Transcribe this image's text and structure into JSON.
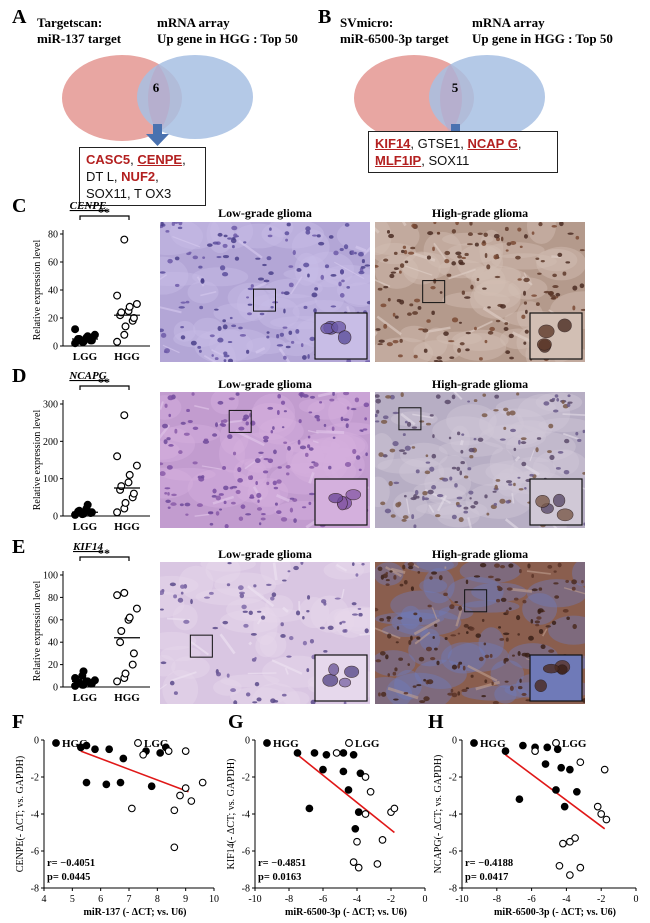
{
  "panels": {
    "A": {
      "letter": "A",
      "left_title": "Targetscan:",
      "left_sub": "miR-137 target",
      "right_title": "mRNA array",
      "right_sub": "Up gene in HGG : Top 50",
      "overlap": "6",
      "genes": [
        {
          "text": "CASC5",
          "style": "red"
        },
        {
          "text": ", ",
          "style": "blk"
        },
        {
          "text": "CENPE",
          "style": "red u"
        },
        {
          "text": ", DT L, ",
          "style": "blk"
        },
        {
          "text": "NUF2",
          "style": "red"
        },
        {
          "text": ", SOX11, T OX3",
          "style": "blk"
        }
      ]
    },
    "B": {
      "letter": "B",
      "left_title": "SVmicro:",
      "left_sub": "miR-6500-3p  target",
      "right_title": "mRNA array",
      "right_sub": "Up gene in HGG : Top 50",
      "overlap": "5",
      "genes": [
        {
          "text": "KIF14",
          "style": "red u"
        },
        {
          "text": ", GTSE1, ",
          "style": "blk"
        },
        {
          "text": "NCAP G",
          "style": "red"
        },
        {
          "text": ", ",
          "style": "blk"
        },
        {
          "text": "MLF1IP",
          "style": "red u"
        },
        {
          "text": ", SOX11",
          "style": "blk"
        }
      ]
    },
    "C": {
      "letter": "C",
      "histo_left": "Low-grade glioma",
      "histo_right": "High-grade glioma"
    },
    "D": {
      "letter": "D",
      "histo_left": "Low-grade glioma",
      "histo_right": "High-grade glioma"
    },
    "E": {
      "letter": "E",
      "histo_left": "Low-grade glioma",
      "histo_right": "High-grade glioma"
    },
    "F": {
      "letter": "F"
    },
    "G": {
      "letter": "G"
    },
    "H": {
      "letter": "H"
    }
  },
  "colors": {
    "venn_left": "#e8a6a2",
    "venn_right": "#a7bfe3",
    "arrow": "#4a72b0",
    "fit_line": "#e01818",
    "stain_blue": "#9a86c8",
    "stain_brown": "#7a4a34"
  },
  "chart_data": [
    {
      "id": "C",
      "type": "scatter",
      "gene": "CENPE",
      "significance": "**",
      "ylabel": "Relative expression level",
      "ylim": [
        0,
        80
      ],
      "yticks": [
        0,
        20,
        40,
        60,
        80
      ],
      "categories": [
        "LGG",
        "HGG"
      ],
      "series": [
        {
          "name": "LGG",
          "filled": true,
          "values": [
            2,
            3,
            3,
            4,
            4,
            5,
            5,
            6,
            7,
            8,
            12
          ],
          "mean": 5
        },
        {
          "name": "HGG",
          "filled": false,
          "values": [
            3,
            8,
            14,
            18,
            20,
            22,
            24,
            25,
            28,
            30,
            36,
            76
          ],
          "mean": 22
        }
      ]
    },
    {
      "id": "D",
      "type": "scatter",
      "gene": "NCAPG",
      "significance": "**",
      "ylabel": "Relative expression level",
      "ylim": [
        0,
        300
      ],
      "yticks": [
        0,
        100,
        200,
        300
      ],
      "categories": [
        "LGG",
        "HGG"
      ],
      "series": [
        {
          "name": "LGG",
          "filled": true,
          "values": [
            3,
            5,
            6,
            8,
            10,
            12,
            14,
            20,
            30
          ],
          "mean": 10
        },
        {
          "name": "HGG",
          "filled": false,
          "values": [
            10,
            20,
            35,
            50,
            60,
            70,
            80,
            90,
            110,
            135,
            160,
            270
          ],
          "mean": 75
        }
      ]
    },
    {
      "id": "E",
      "type": "scatter",
      "gene": "KIF14",
      "significance": "**",
      "ylabel": "Relative expression level",
      "ylim": [
        0,
        100
      ],
      "yticks": [
        0,
        20,
        40,
        60,
        80,
        100
      ],
      "categories": [
        "LGG",
        "HGG"
      ],
      "series": [
        {
          "name": "LGG",
          "filled": true,
          "values": [
            1,
            2,
            2,
            3,
            3,
            4,
            4,
            5,
            5,
            6,
            8,
            10,
            14
          ],
          "mean": 5
        },
        {
          "name": "HGG",
          "filled": false,
          "values": [
            5,
            8,
            12,
            20,
            30,
            40,
            50,
            60,
            62,
            70,
            82,
            84
          ],
          "mean": 44
        }
      ]
    },
    {
      "id": "F",
      "type": "scatter",
      "xlabel": "miR-137 (- ΔCT; vs. U6)",
      "ylabel": "CENPE(- ΔCT; vs. GAPDH)",
      "xlim": [
        4,
        10
      ],
      "ylim": [
        -8,
        0
      ],
      "xticks": [
        4,
        5,
        6,
        7,
        8,
        9,
        10
      ],
      "yticks": [
        0,
        -2,
        -4,
        -6,
        -8
      ],
      "xtick_labels": [
        "4",
        "5",
        "6",
        "7",
        "8",
        "9",
        "10"
      ],
      "ytick_labels": [
        "0",
        "-2",
        "-4",
        "-6",
        "-8"
      ],
      "legend": [
        "HGG",
        "LGG"
      ],
      "stats": {
        "r": "r= −0.4051",
        "p": "p= 0.0445"
      },
      "fit": [
        [
          5.3,
          -0.6
        ],
        [
          9.1,
          -2.8
        ]
      ],
      "series": [
        {
          "name": "HGG",
          "filled": true,
          "points": [
            [
              5.3,
              -0.4
            ],
            [
              5.5,
              -0.3
            ],
            [
              5.8,
              -0.5
            ],
            [
              6.3,
              -0.5
            ],
            [
              7.6,
              -0.6
            ],
            [
              8.1,
              -0.7
            ],
            [
              8.3,
              -0.4
            ],
            [
              5.5,
              -2.3
            ],
            [
              6.2,
              -2.4
            ],
            [
              6.7,
              -2.3
            ],
            [
              7.8,
              -2.5
            ],
            [
              6.8,
              -1.0
            ]
          ]
        },
        {
          "name": "LGG",
          "filled": false,
          "points": [
            [
              7.5,
              -0.8
            ],
            [
              8.4,
              -0.6
            ],
            [
              9.0,
              -0.6
            ],
            [
              9.6,
              -2.3
            ],
            [
              9.0,
              -2.6
            ],
            [
              8.8,
              -3.0
            ],
            [
              9.2,
              -3.3
            ],
            [
              7.1,
              -3.7
            ],
            [
              8.6,
              -3.8
            ],
            [
              8.6,
              -5.8
            ]
          ]
        }
      ]
    },
    {
      "id": "G",
      "type": "scatter",
      "xlabel": "miR-6500-3p (- ΔCT; vs. U6)",
      "ylabel": "KIF14(- ΔCT; vs. GAPDH)",
      "xlim": [
        -10,
        0
      ],
      "ylim": [
        -8,
        0
      ],
      "xticks": [
        -10,
        -8,
        -6,
        -4,
        -2,
        0
      ],
      "yticks": [
        0,
        -2,
        -4,
        -6,
        -8
      ],
      "xtick_labels": [
        "-10",
        "-8",
        "-6",
        "-4",
        "-2",
        "0"
      ],
      "ytick_labels": [
        "0",
        "-2",
        "-4",
        "-6",
        "-8"
      ],
      "legend": [
        "HGG",
        "LGG"
      ],
      "stats": {
        "r": "r= −0.4851",
        "p": "p= 0.0163"
      },
      "fit": [
        [
          -7.5,
          -0.8
        ],
        [
          -1.8,
          -5.0
        ]
      ],
      "series": [
        {
          "name": "HGG",
          "filled": true,
          "points": [
            [
              -7.5,
              -0.7
            ],
            [
              -6.5,
              -0.7
            ],
            [
              -5.8,
              -0.8
            ],
            [
              -4.8,
              -0.7
            ],
            [
              -4.2,
              -0.8
            ],
            [
              -4.8,
              -1.7
            ],
            [
              -3.8,
              -1.8
            ],
            [
              -4.5,
              -2.7
            ],
            [
              -6.0,
              -1.6
            ],
            [
              -6.8,
              -3.7
            ],
            [
              -3.9,
              -3.9
            ],
            [
              -4.1,
              -4.8
            ]
          ]
        },
        {
          "name": "LGG",
          "filled": false,
          "points": [
            [
              -5.2,
              -0.7
            ],
            [
              -3.5,
              -2.0
            ],
            [
              -3.2,
              -2.8
            ],
            [
              -2.0,
              -3.9
            ],
            [
              -1.8,
              -3.7
            ],
            [
              -3.5,
              -4.0
            ],
            [
              -4.0,
              -5.5
            ],
            [
              -4.2,
              -6.6
            ],
            [
              -3.9,
              -6.9
            ],
            [
              -2.8,
              -6.7
            ],
            [
              -2.5,
              -5.4
            ]
          ]
        }
      ]
    },
    {
      "id": "H",
      "type": "scatter",
      "xlabel": "miR-6500-3p (- ΔCT; vs. U6)",
      "ylabel": "NCAPG(- ΔCT; vs. GAPDH)",
      "xlim": [
        -10,
        0
      ],
      "ylim": [
        -8,
        0
      ],
      "xticks": [
        -10,
        -8,
        -6,
        -4,
        -2,
        0
      ],
      "yticks": [
        0,
        -2,
        -4,
        -6,
        -8
      ],
      "xtick_labels": [
        "-10",
        "-8",
        "-6",
        "-4",
        "-2",
        "0"
      ],
      "ytick_labels": [
        "0",
        "-2",
        "-4",
        "-6",
        "-8"
      ],
      "legend": [
        "HGG",
        "LGG"
      ],
      "stats": {
        "r": "r= −0.4188",
        "p": "p= 0.0417"
      },
      "fit": [
        [
          -7.5,
          -0.8
        ],
        [
          -1.8,
          -4.8
        ]
      ],
      "series": [
        {
          "name": "HGG",
          "filled": true,
          "points": [
            [
              -7.5,
              -0.6
            ],
            [
              -6.5,
              -0.3
            ],
            [
              -5.8,
              -0.4
            ],
            [
              -5.1,
              -0.4
            ],
            [
              -4.5,
              -0.5
            ],
            [
              -4.3,
              -1.5
            ],
            [
              -3.8,
              -1.6
            ],
            [
              -5.2,
              -1.3
            ],
            [
              -6.7,
              -3.2
            ],
            [
              -4.6,
              -2.7
            ],
            [
              -3.4,
              -2.8
            ],
            [
              -4.1,
              -3.6
            ]
          ]
        },
        {
          "name": "LGG",
          "filled": false,
          "points": [
            [
              -5.8,
              -0.6
            ],
            [
              -3.2,
              -1.2
            ],
            [
              -1.8,
              -1.6
            ],
            [
              -2.2,
              -3.6
            ],
            [
              -2.0,
              -4.0
            ],
            [
              -1.7,
              -4.3
            ],
            [
              -3.5,
              -5.3
            ],
            [
              -3.8,
              -5.5
            ],
            [
              -4.2,
              -5.6
            ],
            [
              -4.4,
              -6.8
            ],
            [
              -3.8,
              -7.3
            ],
            [
              -3.2,
              -6.9
            ]
          ]
        }
      ]
    }
  ]
}
